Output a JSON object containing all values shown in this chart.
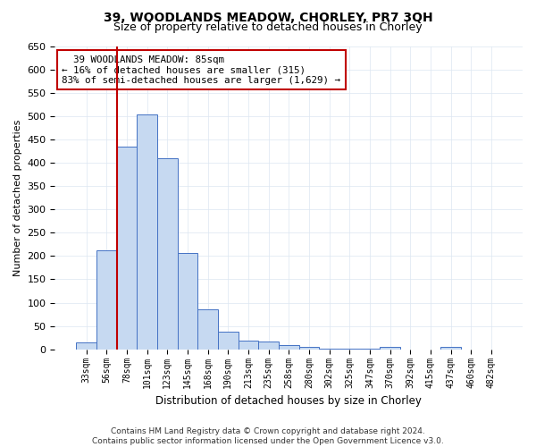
{
  "title1": "39, WOODLANDS MEADOW, CHORLEY, PR7 3QH",
  "title2": "Size of property relative to detached houses in Chorley",
  "xlabel": "Distribution of detached houses by size in Chorley",
  "ylabel": "Number of detached properties",
  "bin_labels": [
    "33sqm",
    "56sqm",
    "78sqm",
    "101sqm",
    "123sqm",
    "145sqm",
    "168sqm",
    "190sqm",
    "213sqm",
    "235sqm",
    "258sqm",
    "280sqm",
    "302sqm",
    "325sqm",
    "347sqm",
    "370sqm",
    "392sqm",
    "415sqm",
    "437sqm",
    "460sqm",
    "482sqm"
  ],
  "bar_values": [
    15,
    213,
    435,
    503,
    410,
    207,
    85,
    38,
    18,
    17,
    10,
    5,
    2,
    1,
    1,
    5,
    0,
    0,
    5,
    0,
    0
  ],
  "bar_color": "#c6d9f1",
  "bar_edge_color": "#4472c4",
  "vline_color": "#c00000",
  "vline_x_pos": 1.5,
  "annotation_line1": "  39 WOODLANDS MEADOW: 85sqm",
  "annotation_line2": "← 16% of detached houses are smaller (315)",
  "annotation_line3": "83% of semi-detached houses are larger (1,629) →",
  "annotation_box_color": "white",
  "annotation_box_edge_color": "#c00000",
  "ylim": [
    0,
    650
  ],
  "yticks": [
    0,
    50,
    100,
    150,
    200,
    250,
    300,
    350,
    400,
    450,
    500,
    550,
    600,
    650
  ],
  "footer1": "Contains HM Land Registry data © Crown copyright and database right 2024.",
  "footer2": "Contains public sector information licensed under the Open Government Licence v3.0.",
  "bg_color": "#ffffff",
  "grid_color": "#dce6f1"
}
